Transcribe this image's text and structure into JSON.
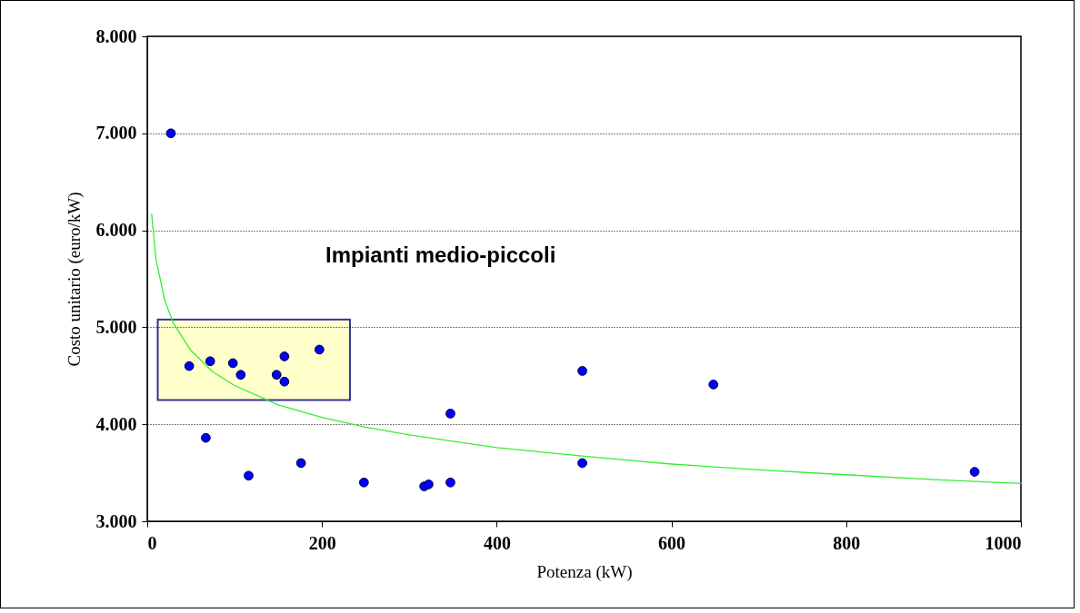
{
  "chart_data": {
    "type": "scatter",
    "xlabel": "Potenza (kW)",
    "ylabel": "Costo unitario (euro/kW)",
    "annotations": [
      "Impianti medio-piccoli"
    ],
    "xlim": [
      0,
      1000
    ],
    "xticks": [
      0,
      200,
      400,
      600,
      800,
      1000
    ],
    "ylim": [
      3000,
      8000
    ],
    "yticks": [
      {
        "value": 3000,
        "label": "3.000"
      },
      {
        "value": 4000,
        "label": "4.000"
      },
      {
        "value": 5000,
        "label": "5.000"
      },
      {
        "value": 6000,
        "label": "6.000"
      },
      {
        "value": 7000,
        "label": "7.000"
      },
      {
        "value": 8000,
        "label": "8.000"
      }
    ],
    "grid": "y",
    "series": [
      {
        "color": "#0000ff",
        "marker": "circle",
        "x": [
          27,
          48,
          72,
          67,
          98,
          107,
          116,
          148,
          157,
          157,
          176,
          197,
          248,
          317,
          322,
          347,
          347,
          498,
          498,
          648,
          947
        ],
        "values": [
          7000,
          4600,
          4650,
          3860,
          4630,
          4510,
          3470,
          4510,
          4440,
          4700,
          3600,
          4770,
          3400,
          3360,
          3380,
          4110,
          3400,
          4550,
          3600,
          4410,
          3510
        ]
      },
      {
        "type": "line",
        "color": "#33ee33",
        "line_style": "solid",
        "x": [
          5,
          10,
          20,
          30,
          50,
          75,
          100,
          150,
          200,
          250,
          300,
          400,
          500,
          600,
          700,
          800,
          900,
          1000
        ],
        "values": [
          6170,
          5700,
          5280,
          5040,
          4760,
          4540,
          4400,
          4200,
          4070,
          3970,
          3890,
          3760,
          3670,
          3590,
          3530,
          3480,
          3430,
          3390
        ]
      }
    ]
  }
}
